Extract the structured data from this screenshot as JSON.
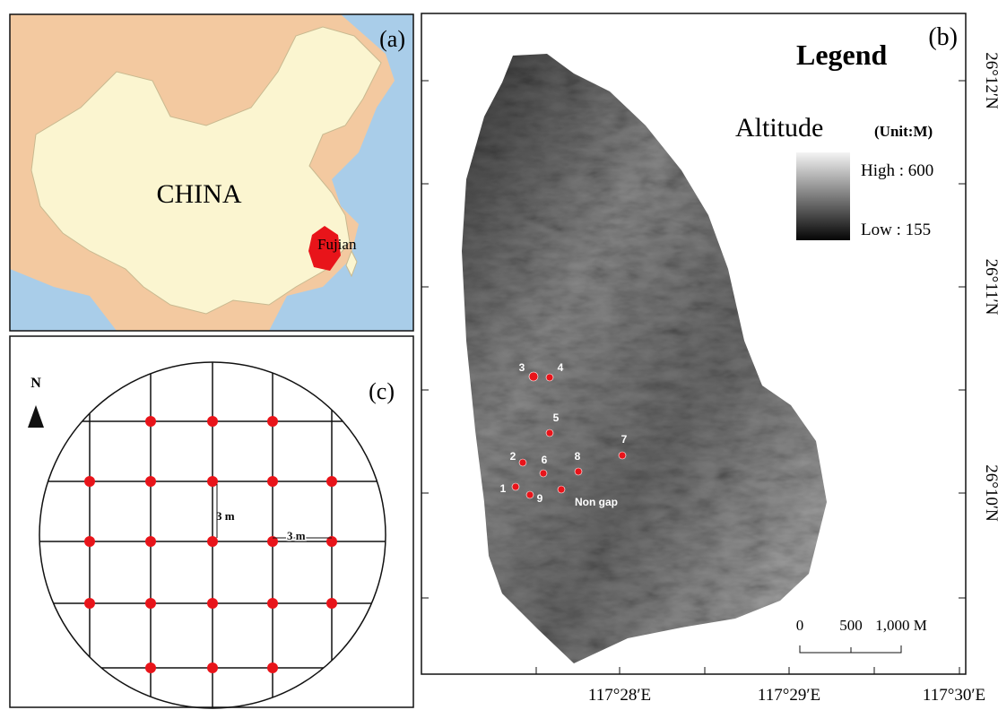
{
  "panel_a": {
    "label": "(a)",
    "country": "CHINA",
    "province": "Fujian"
  },
  "panel_b": {
    "label": "(b)",
    "legend_title": "Legend",
    "legend_variable": "Altitude",
    "legend_unit": "(Unit:M)",
    "legend_high": "High : 600",
    "legend_low": "Low : 155",
    "scale_bar": [
      "0",
      "500",
      "1,000 M"
    ],
    "latitudes": [
      "26°12′N",
      "26°11′N",
      "26°10′N"
    ],
    "longitudes": [
      "117°28′E",
      "117°29′E",
      "117°30′E"
    ],
    "sites": [
      "1",
      "2",
      "3",
      "4",
      "5",
      "6",
      "7",
      "8",
      "9",
      "Non gap"
    ]
  },
  "panel_c": {
    "label": "(c)",
    "north": "N",
    "spacing_vertical": "3 m",
    "spacing_horizontal": "3 m"
  }
}
